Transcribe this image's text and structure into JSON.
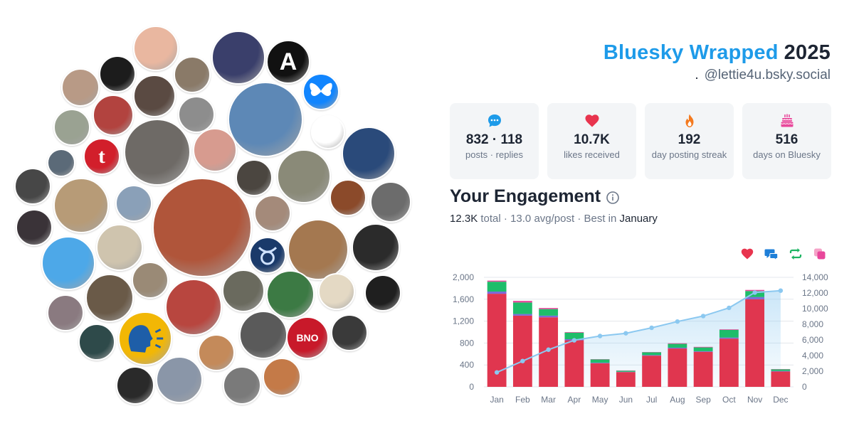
{
  "header": {
    "brand": "Bluesky Wrapped",
    "year": "2025",
    "dot": ".",
    "handle": "@lettie4u.bsky.social"
  },
  "stats": [
    {
      "value": "832 · 118",
      "label": "posts · replies",
      "icon": "chat-bubble-icon",
      "color": "#1e9be9"
    },
    {
      "value": "10.7K",
      "label": "likes received",
      "icon": "heart-icon",
      "color": "#e8344e"
    },
    {
      "value": "192",
      "label": "day posting streak",
      "icon": "flame-icon",
      "color": "#f47a1f"
    },
    {
      "value": "516",
      "label": "days on Bluesky",
      "icon": "cake-icon",
      "color": "#e8479b"
    }
  ],
  "engagement": {
    "title": "Your Engagement",
    "total_value": "12.3K",
    "total_label": "total",
    "sep1": "·",
    "avg": "13.0 avg/post",
    "sep2": "·",
    "best_label": "Best in",
    "best_month": "January"
  },
  "legend": [
    {
      "icon": "heart-icon",
      "color": "#e8344e"
    },
    {
      "icon": "reply-icon",
      "color": "#1e7fd8"
    },
    {
      "icon": "repost-icon",
      "color": "#1db462"
    },
    {
      "icon": "quote-icon",
      "color": "#e8479b"
    }
  ],
  "avatars": [
    {
      "name": "avatar-woman-sketch",
      "color": "#e9b7a0",
      "letter": ""
    },
    {
      "name": "avatar-ninja",
      "color": "#1c1c1c",
      "letter": ""
    },
    {
      "name": "avatar-man-glasses",
      "color": "#8a7a68",
      "letter": ""
    },
    {
      "name": "avatar-stage",
      "color": "#3a3f6b",
      "letter": ""
    },
    {
      "name": "avatar-anarchy",
      "color": "#111111",
      "letter": "A"
    },
    {
      "name": "avatar-butterfly",
      "color": "#1185fe",
      "letter": ""
    },
    {
      "name": "avatar-curly-woman",
      "color": "#b89a86",
      "letter": ""
    },
    {
      "name": "avatar-bald-man",
      "color": "#5a4a42",
      "letter": ""
    },
    {
      "name": "avatar-dog-santa",
      "color": "#5d88b6",
      "letter": ""
    },
    {
      "name": "avatar-red-hair",
      "color": "#b2433f",
      "letter": ""
    },
    {
      "name": "avatar-bearded-bw",
      "color": "#8d8d8d",
      "letter": ""
    },
    {
      "name": "avatar-raccoon",
      "color": "#ffffff",
      "letter": ""
    },
    {
      "name": "avatar-old-man",
      "color": "#9aa292",
      "letter": ""
    },
    {
      "name": "avatar-tumblr",
      "color": "#d21f2b",
      "letter": "t"
    },
    {
      "name": "avatar-hooded-man",
      "color": "#6e6a66",
      "letter": ""
    },
    {
      "name": "avatar-woman-pink",
      "color": "#d79b8f",
      "letter": ""
    },
    {
      "name": "avatar-politician",
      "color": "#2a4a7a",
      "letter": ""
    },
    {
      "name": "avatar-cap-man",
      "color": "#5b6a78",
      "letter": ""
    },
    {
      "name": "avatar-bearded-man",
      "color": "#4b4640",
      "letter": ""
    },
    {
      "name": "avatar-soldier",
      "color": "#8a8a78",
      "letter": ""
    },
    {
      "name": "avatar-dark-man",
      "color": "#474747",
      "letter": ""
    },
    {
      "name": "avatar-blonde-woman",
      "color": "#b79b77",
      "letter": ""
    },
    {
      "name": "avatar-gray-man",
      "color": "#8aa0b8",
      "letter": ""
    },
    {
      "name": "avatar-cartoon-man",
      "color": "#8b4a2a",
      "letter": ""
    },
    {
      "name": "avatar-red-woman-large",
      "color": "#b0553a",
      "letter": ""
    },
    {
      "name": "avatar-glasses-woman",
      "color": "#a48a7a",
      "letter": ""
    },
    {
      "name": "avatar-dark-woman",
      "color": "#3a3338",
      "letter": ""
    },
    {
      "name": "avatar-woman-bw",
      "color": "#6c6c6c",
      "letter": ""
    },
    {
      "name": "avatar-blue-cartoon",
      "color": "#4da8e8",
      "letter": ""
    },
    {
      "name": "avatar-vintage-ad",
      "color": "#cfc4ae",
      "letter": ""
    },
    {
      "name": "avatar-taurus",
      "color": "#1a3a6a",
      "letter": ""
    },
    {
      "name": "avatar-sunglasses-man",
      "color": "#a47850",
      "letter": ""
    },
    {
      "name": "avatar-heart-dark",
      "color": "#2b2b2b",
      "letter": ""
    },
    {
      "name": "avatar-horse-people",
      "color": "#6a5a48",
      "letter": ""
    },
    {
      "name": "avatar-couple",
      "color": "#9a8a76",
      "letter": ""
    },
    {
      "name": "avatar-santa-cat",
      "color": "#b8463f",
      "letter": ""
    },
    {
      "name": "avatar-military-man",
      "color": "#6a6a5e",
      "letter": ""
    },
    {
      "name": "avatar-green-lady",
      "color": "#3c7a44",
      "letter": ""
    },
    {
      "name": "avatar-cartoon-bird",
      "color": "#e4d9c4",
      "letter": ""
    },
    {
      "name": "avatar-tuxedo",
      "color": "#1f1f1f",
      "letter": ""
    },
    {
      "name": "avatar-lightsaber",
      "color": "#8a7a80",
      "letter": ""
    },
    {
      "name": "avatar-fantasy",
      "color": "#2e4a4a",
      "letter": ""
    },
    {
      "name": "avatar-speaking-head",
      "color": "#f2b705",
      "letter": ""
    },
    {
      "name": "avatar-shiba-santa",
      "color": "#c48a5a",
      "letter": ""
    },
    {
      "name": "avatar-shadow",
      "color": "#5a5a5a",
      "letter": ""
    },
    {
      "name": "avatar-bno-news",
      "color": "#c8192a",
      "letter": "BNO"
    },
    {
      "name": "avatar-dark-art",
      "color": "#3a3a3a",
      "letter": ""
    },
    {
      "name": "avatar-forever-oakland",
      "color": "#2a2a2a",
      "letter": ""
    },
    {
      "name": "avatar-blonde-pro",
      "color": "#8a96a8",
      "letter": ""
    },
    {
      "name": "avatar-bw-man",
      "color": "#7a7a7a",
      "letter": ""
    },
    {
      "name": "avatar-woman-warm",
      "color": "#c47a48",
      "letter": ""
    }
  ],
  "chart_data": {
    "type": "bar",
    "categories": [
      "Jan",
      "Feb",
      "Mar",
      "Apr",
      "May",
      "Jun",
      "Jul",
      "Aug",
      "Sep",
      "Oct",
      "Nov",
      "Dec"
    ],
    "y_ticks": [
      "0",
      "400",
      "800",
      "1,200",
      "1,600",
      "2,000"
    ],
    "y2_ticks": [
      "0",
      "2,000",
      "4,000",
      "6,000",
      "8,000",
      "10,000",
      "12,000",
      "14,000"
    ],
    "ylim": [
      0,
      2000
    ],
    "y2lim": [
      0,
      14000
    ],
    "series": [
      {
        "type": "bar",
        "color": "#e0364f",
        "values": [
          1700,
          1300,
          1270,
          850,
          430,
          270,
          570,
          700,
          640,
          880,
          1600,
          280
        ]
      },
      {
        "type": "bar",
        "color": "#7b6ad8",
        "values": [
          40,
          30,
          30,
          20,
          10,
          5,
          10,
          15,
          10,
          20,
          40,
          10
        ]
      },
      {
        "type": "bar",
        "color": "#1ebd6a",
        "values": [
          180,
          210,
          120,
          120,
          60,
          20,
          50,
          70,
          70,
          140,
          110,
          30
        ]
      },
      {
        "type": "bar",
        "color": "#e8479b",
        "values": [
          20,
          30,
          20,
          10,
          5,
          5,
          5,
          10,
          10,
          10,
          20,
          5
        ]
      },
      {
        "type": "line",
        "color": "#8bc8f0",
        "values": [
          1850,
          3300,
          4750,
          5950,
          6500,
          6850,
          7550,
          8350,
          9050,
          10100,
          12050,
          12300
        ]
      }
    ]
  }
}
